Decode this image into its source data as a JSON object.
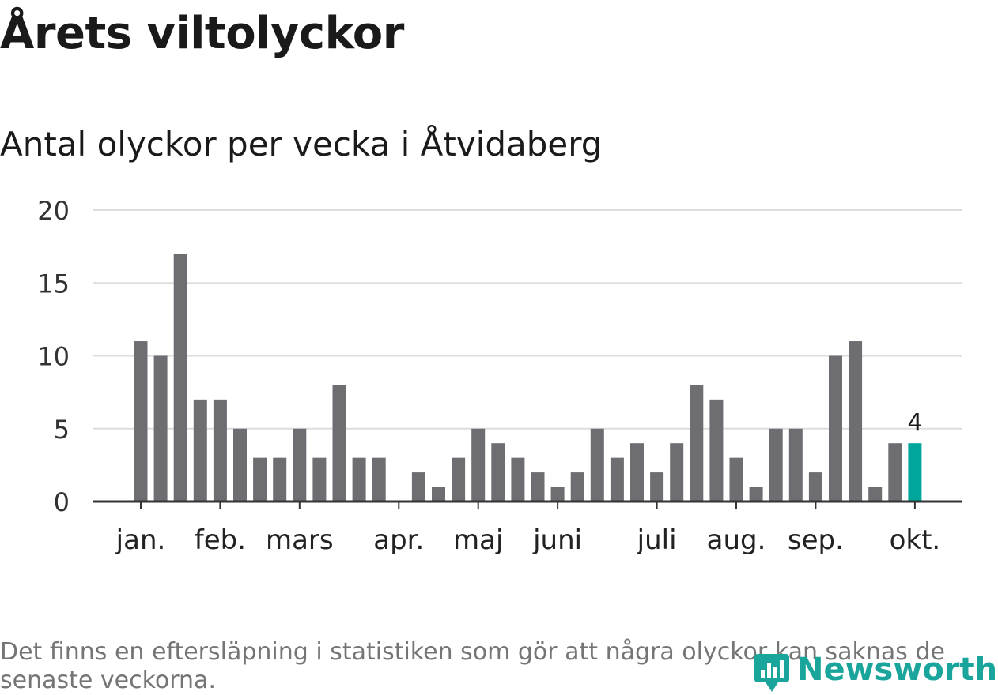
{
  "header": {
    "title": "Årets viltolyckor",
    "subtitle": "Antal olyckor per vecka i Åtvidaberg"
  },
  "chart_data": {
    "type": "bar",
    "title": "Årets viltolyckor",
    "subtitle": "Antal olyckor per vecka i Åtvidaberg",
    "xlabel": "",
    "ylabel": "",
    "ylim": [
      0,
      20
    ],
    "y_ticks": [
      "0",
      "5",
      "10",
      "15",
      "20"
    ],
    "grid": true,
    "values": [
      11,
      10,
      17,
      7,
      7,
      5,
      3,
      3,
      5,
      3,
      8,
      3,
      3,
      0,
      2,
      1,
      3,
      5,
      4,
      3,
      2,
      1,
      2,
      5,
      3,
      4,
      2,
      4,
      8,
      7,
      3,
      1,
      5,
      5,
      2,
      10,
      11,
      1,
      4,
      4
    ],
    "x_tick_labels": [
      {
        "label": "jan.",
        "index": 0
      },
      {
        "label": "feb.",
        "index": 4
      },
      {
        "label": "mars",
        "index": 8
      },
      {
        "label": "apr.",
        "index": 13
      },
      {
        "label": "maj",
        "index": 17
      },
      {
        "label": "juni",
        "index": 21
      },
      {
        "label": "juli",
        "index": 26
      },
      {
        "label": "aug.",
        "index": 30
      },
      {
        "label": "sep.",
        "index": 34
      },
      {
        "label": "okt.",
        "index": 39
      }
    ],
    "highlight_index": 39,
    "highlight_label": "4",
    "colors": {
      "bar": "#6e6d72",
      "highlight": "#00a69c",
      "grid": "#dddddd",
      "axis": "#333333"
    }
  },
  "footnote": "Det finns en eftersläpning i statistiken som gör att några olyckor kan saknas de senaste veckorna.",
  "brand": {
    "name": "Newsworthy",
    "logo_icon": "newsworthy-logo-icon",
    "color": "#19a59b"
  }
}
